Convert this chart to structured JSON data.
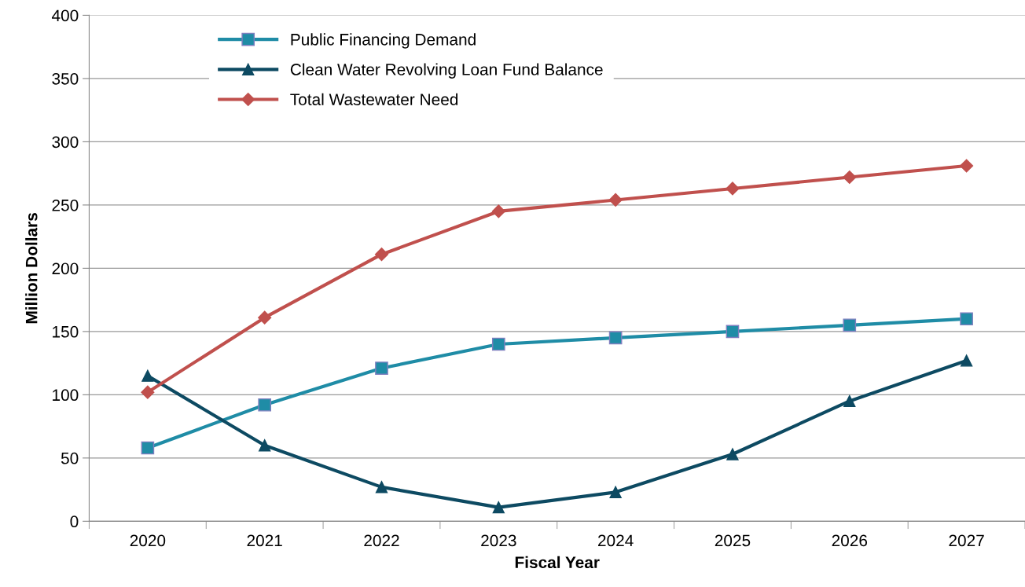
{
  "chart_data": {
    "type": "line",
    "xlabel": "Fiscal Year",
    "ylabel": "Million Dollars",
    "categories": [
      "2020",
      "2021",
      "2022",
      "2023",
      "2024",
      "2025",
      "2026",
      "2027"
    ],
    "series": [
      {
        "name": "Public Financing Demand",
        "color": "#1f8ca6",
        "marker": "square",
        "values": [
          58,
          92,
          121,
          140,
          145,
          150,
          155,
          160
        ]
      },
      {
        "name": "Clean Water Revolving Loan Fund Balance",
        "color": "#0d4a62",
        "marker": "triangle",
        "values": [
          115,
          60,
          27,
          11,
          23,
          53,
          95,
          127
        ]
      },
      {
        "name": "Total Wastewater Need",
        "color": "#c0504d",
        "marker": "diamond",
        "values": [
          102,
          161,
          211,
          245,
          254,
          263,
          272,
          281
        ]
      }
    ],
    "ylim": [
      0,
      400
    ],
    "yticks": [
      0,
      50,
      100,
      150,
      200,
      250,
      300,
      350,
      400
    ],
    "grid": "y",
    "legend": "top left",
    "line_style": "solid"
  }
}
